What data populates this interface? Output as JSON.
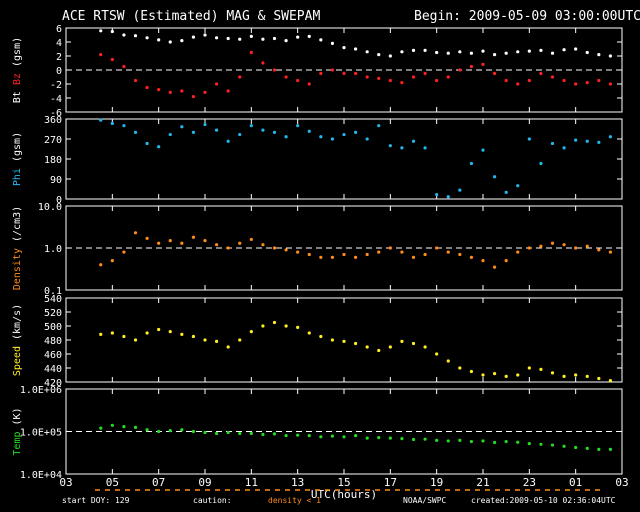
{
  "header": {
    "title": "ACE RTSW (Estimated) MAG & SWEPAM",
    "begin": "Begin: 2009-05-09 03:00:00UTC"
  },
  "footer": {
    "start_doy": "start DOY: 129",
    "caution": "caution:",
    "density_note": "density < 1",
    "org": "NOAA/SWPC",
    "created": "created:2009-05-10 02:36:04UTC"
  },
  "colors": {
    "bt": "#ffffff",
    "bz": "#ff2020",
    "phi": "#22b8ee",
    "density": "#ff8c1a",
    "speed": "#ffee22",
    "temp": "#22dd22",
    "axes": "#ffffff",
    "background": "#000000"
  },
  "chart_data": {
    "type": "scatter",
    "x_axis": {
      "label": "UTC(hours)",
      "ticks": [
        "03",
        "05",
        "07",
        "09",
        "11",
        "13",
        "15",
        "17",
        "19",
        "21",
        "23",
        "01",
        "03"
      ],
      "range_hours": [
        0,
        24
      ]
    },
    "panels": [
      {
        "id": "mag",
        "ylabel_parts": [
          "Bt",
          "Bz",
          "(gsm)"
        ],
        "ylim": [
          -6,
          6
        ],
        "yticks": [
          "6",
          "4",
          "2",
          "0",
          "-2",
          "-4",
          "-6"
        ],
        "ytick_values": [
          6,
          4,
          2,
          0,
          -2,
          -4,
          -6
        ],
        "log": false,
        "dashed_ref": 0,
        "series": [
          {
            "name": "Bt",
            "color_key": "bt",
            "x": [
              1.5,
              2.0,
              2.5,
              3.0,
              3.5,
              4.0,
              4.5,
              5.0,
              5.5,
              6.0,
              6.5,
              7.0,
              7.5,
              8.0,
              8.5,
              9.0,
              9.5,
              10.0,
              10.5,
              11.0,
              11.5,
              12.0,
              12.5,
              13.0,
              13.5,
              14.0,
              14.5,
              15.0,
              15.5,
              16.0,
              16.5,
              17.0,
              17.5,
              18.0,
              18.5,
              19.0,
              19.5,
              20.0,
              20.5,
              21.0,
              21.5,
              22.0,
              22.5,
              23.0,
              23.5
            ],
            "y": [
              5.6,
              5.5,
              5.0,
              4.9,
              4.6,
              4.3,
              4.0,
              4.2,
              4.7,
              5.0,
              4.6,
              4.5,
              4.4,
              4.8,
              4.4,
              4.5,
              4.2,
              4.7,
              4.8,
              4.3,
              3.8,
              3.2,
              3.0,
              2.6,
              2.2,
              2.0,
              2.6,
              2.8,
              2.8,
              2.5,
              2.4,
              2.6,
              2.4,
              2.7,
              2.2,
              2.4,
              2.6,
              2.7,
              2.8,
              2.4,
              2.9,
              3.0,
              2.5,
              2.2,
              2.0
            ]
          },
          {
            "name": "Bz",
            "color_key": "bz",
            "x": [
              1.5,
              2.0,
              2.5,
              3.0,
              3.5,
              4.0,
              4.5,
              5.0,
              5.5,
              6.0,
              6.5,
              7.0,
              7.5,
              8.0,
              8.5,
              9.0,
              9.5,
              10.0,
              10.5,
              11.0,
              11.5,
              12.0,
              12.5,
              13.0,
              13.5,
              14.0,
              14.5,
              15.0,
              15.5,
              16.0,
              16.5,
              17.0,
              17.5,
              18.0,
              18.5,
              19.0,
              19.5,
              20.0,
              20.5,
              21.0,
              21.5,
              22.0,
              22.5,
              23.0,
              23.5
            ],
            "y": [
              2.2,
              1.5,
              0.5,
              -1.5,
              -2.5,
              -2.8,
              -3.2,
              -3.0,
              -3.8,
              -3.2,
              -2.0,
              -3.0,
              -1.0,
              2.5,
              1.0,
              0.0,
              -1.0,
              -1.5,
              -2.0,
              -0.5,
              0.0,
              -0.5,
              -0.5,
              -1.0,
              -1.2,
              -1.5,
              -1.8,
              -1.0,
              -0.5,
              -1.5,
              -1.0,
              0.0,
              0.5,
              0.8,
              -0.5,
              -1.5,
              -2.0,
              -1.5,
              -0.5,
              -1.0,
              -1.5,
              -2.0,
              -1.8,
              -1.5,
              -2.0
            ]
          }
        ]
      },
      {
        "id": "phi",
        "ylabel_parts": [
          "Phi",
          "(gsm)"
        ],
        "ylim": [
          0,
          360
        ],
        "yticks": [
          "360",
          "270",
          "180",
          "90",
          "0"
        ],
        "ytick_values": [
          360,
          270,
          180,
          90,
          0
        ],
        "log": false,
        "dashed_ref": null,
        "series": [
          {
            "name": "Phi",
            "color_key": "phi",
            "x": [
              1.5,
              2.0,
              2.5,
              3.0,
              3.5,
              4.0,
              4.5,
              5.0,
              5.5,
              6.0,
              6.5,
              7.0,
              7.5,
              8.0,
              8.5,
              9.0,
              9.5,
              10.0,
              10.5,
              11.0,
              11.5,
              12.0,
              12.5,
              13.0,
              13.5,
              14.0,
              14.5,
              15.0,
              15.5,
              16.0,
              16.5,
              17.0,
              17.5,
              18.0,
              18.5,
              19.0,
              19.5,
              20.0,
              20.5,
              21.0,
              21.5,
              22.0,
              22.5,
              23.0,
              23.5
            ],
            "y": [
              355,
              340,
              330,
              300,
              250,
              235,
              290,
              325,
              300,
              335,
              310,
              260,
              290,
              330,
              310,
              300,
              280,
              330,
              305,
              280,
              270,
              290,
              300,
              270,
              330,
              240,
              230,
              260,
              230,
              20,
              10,
              40,
              160,
              220,
              100,
              30,
              60,
              270,
              160,
              250,
              230,
              265,
              260,
              255,
              280
            ]
          }
        ]
      },
      {
        "id": "density",
        "ylabel_parts": [
          "Density",
          "(/cm3)"
        ],
        "ylim": [
          0.1,
          10
        ],
        "yticks": [
          "10.0",
          "1.0",
          "0.1"
        ],
        "ytick_values": [
          10,
          1,
          0.1
        ],
        "log": true,
        "dashed_ref": 1,
        "series": [
          {
            "name": "Density",
            "color_key": "density",
            "x": [
              1.5,
              2.0,
              2.5,
              3.0,
              3.5,
              4.0,
              4.5,
              5.0,
              5.5,
              6.0,
              6.5,
              7.0,
              7.5,
              8.0,
              8.5,
              9.0,
              9.5,
              10.0,
              10.5,
              11.0,
              11.5,
              12.0,
              12.5,
              13.0,
              13.5,
              14.0,
              14.5,
              15.0,
              15.5,
              16.0,
              16.5,
              17.0,
              17.5,
              18.0,
              18.5,
              19.0,
              19.5,
              20.0,
              20.5,
              21.0,
              21.5,
              22.0,
              22.5,
              23.0,
              23.5
            ],
            "y": [
              0.4,
              0.5,
              0.8,
              2.3,
              1.7,
              1.3,
              1.5,
              1.3,
              1.8,
              1.5,
              1.2,
              1.0,
              1.3,
              1.6,
              1.2,
              1.0,
              0.9,
              0.8,
              0.7,
              0.6,
              0.6,
              0.7,
              0.6,
              0.7,
              0.8,
              1.0,
              0.8,
              0.6,
              0.7,
              1.0,
              0.8,
              0.7,
              0.6,
              0.5,
              0.35,
              0.5,
              0.8,
              1.0,
              1.1,
              1.3,
              1.2,
              1.0,
              1.1,
              0.9,
              0.8
            ]
          }
        ]
      },
      {
        "id": "speed",
        "ylabel_parts": [
          "Speed",
          "(km/s)"
        ],
        "ylim": [
          420,
          540
        ],
        "yticks": [
          "540",
          "520",
          "500",
          "480",
          "460",
          "440",
          "420"
        ],
        "ytick_values": [
          540,
          520,
          500,
          480,
          460,
          440,
          420
        ],
        "log": false,
        "dashed_ref": null,
        "series": [
          {
            "name": "Speed",
            "color_key": "speed",
            "x": [
              1.5,
              2.0,
              2.5,
              3.0,
              3.5,
              4.0,
              4.5,
              5.0,
              5.5,
              6.0,
              6.5,
              7.0,
              7.5,
              8.0,
              8.5,
              9.0,
              9.5,
              10.0,
              10.5,
              11.0,
              11.5,
              12.0,
              12.5,
              13.0,
              13.5,
              14.0,
              14.5,
              15.0,
              15.5,
              16.0,
              16.5,
              17.0,
              17.5,
              18.0,
              18.5,
              19.0,
              19.5,
              20.0,
              20.5,
              21.0,
              21.5,
              22.0,
              22.5,
              23.0,
              23.5
            ],
            "y": [
              488,
              490,
              485,
              480,
              490,
              495,
              492,
              488,
              485,
              480,
              478,
              470,
              480,
              492,
              500,
              505,
              500,
              498,
              490,
              485,
              480,
              478,
              475,
              470,
              465,
              470,
              478,
              475,
              470,
              460,
              450,
              440,
              435,
              430,
              432,
              428,
              430,
              440,
              438,
              433,
              428,
              430,
              428,
              425,
              422
            ]
          }
        ]
      },
      {
        "id": "temp",
        "ylabel_parts": [
          "Temp",
          "(K)"
        ],
        "ylim": [
          10000,
          1000000
        ],
        "yticks": [
          "1.0E+06",
          "1.0E+05",
          "1.0E+04"
        ],
        "ytick_values": [
          1000000,
          100000,
          10000
        ],
        "log": true,
        "dashed_ref": 100000,
        "series": [
          {
            "name": "Temp",
            "color_key": "temp",
            "x": [
              1.5,
              2.0,
              2.5,
              3.0,
              3.5,
              4.0,
              4.5,
              5.0,
              5.5,
              6.0,
              6.5,
              7.0,
              7.5,
              8.0,
              8.5,
              9.0,
              9.5,
              10.0,
              10.5,
              11.0,
              11.5,
              12.0,
              12.5,
              13.0,
              13.5,
              14.0,
              14.5,
              15.0,
              15.5,
              16.0,
              16.5,
              17.0,
              17.5,
              18.0,
              18.5,
              19.0,
              19.5,
              20.0,
              20.5,
              21.0,
              21.5,
              22.0,
              22.5,
              23.0,
              23.5
            ],
            "y": [
              120000,
              140000,
              130000,
              125000,
              110000,
              100000,
              105000,
              110000,
              100000,
              95000,
              90000,
              95000,
              90000,
              90000,
              85000,
              88000,
              80000,
              82000,
              80000,
              75000,
              78000,
              75000,
              80000,
              70000,
              72000,
              70000,
              68000,
              65000,
              66000,
              62000,
              60000,
              62000,
              58000,
              60000,
              55000,
              58000,
              56000,
              52000,
              50000,
              48000,
              45000,
              42000,
              40000,
              38000,
              38000
            ]
          }
        ]
      }
    ]
  }
}
